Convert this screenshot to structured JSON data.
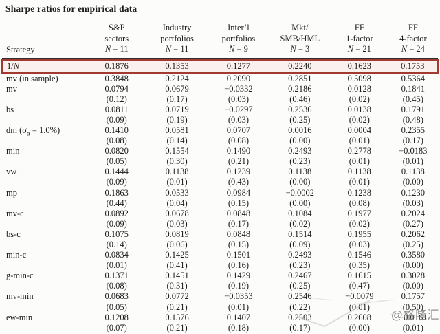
{
  "title": "Sharpe ratios for empirical data",
  "watermark": "@格隆汇",
  "accent_color": "#a13a30",
  "highlight_fill": "#faf1ee",
  "table": {
    "strategy_header": "Strategy",
    "columns": [
      {
        "line1": "S&P",
        "line2": "sectors",
        "n": "N = 11"
      },
      {
        "line1": "Industry",
        "line2": "portfolios",
        "n": "N = 11"
      },
      {
        "line1": "Inter’l",
        "line2": "portfolios",
        "n": "N = 9"
      },
      {
        "line1": "Mkt/",
        "line2": "SMB/HML",
        "n": "N = 3"
      },
      {
        "line1": "FF",
        "line2": "1-factor",
        "n": "N = 21"
      },
      {
        "line1": "FF",
        "line2": "4-factor",
        "n": "N = 24"
      }
    ],
    "rows": [
      {
        "label_pre": "1/",
        "label_ital": "N",
        "label_post": "",
        "highlight": true,
        "values": [
          "0.1876",
          "0.1353",
          "0.1277",
          "0.2240",
          "0.1623",
          "0.1753"
        ]
      },
      {
        "label": "mv (in sample)",
        "values": [
          "0.3848",
          "0.2124",
          "0.2090",
          "0.2851",
          "0.5098",
          "0.5364"
        ]
      },
      {
        "label": "mv",
        "values": [
          "0.0794",
          "0.0679",
          "−0.0332",
          "0.2186",
          "0.0128",
          "0.1841"
        ],
        "pvalues": [
          "(0.12)",
          "(0.17)",
          "(0.03)",
          "(0.46)",
          "(0.02)",
          "(0.45)"
        ]
      },
      {
        "label": "bs",
        "values": [
          "0.0811",
          "0.0719",
          "−0.0297",
          "0.2536",
          "0.0138",
          "0.1791"
        ],
        "pvalues": [
          "(0.09)",
          "(0.19)",
          "(0.03)",
          "(0.25)",
          "(0.02)",
          "(0.48)"
        ]
      },
      {
        "label_pre": "dm (σ",
        "label_sub": "α",
        "label_post": " = 1.0%)",
        "values": [
          "0.1410",
          "0.0581",
          "0.0707",
          "0.0016",
          "0.0004",
          "0.2355"
        ],
        "pvalues": [
          "(0.08)",
          "(0.14)",
          "(0.08)",
          "(0.00)",
          "(0.01)",
          "(0.17)"
        ]
      },
      {
        "label": "min",
        "values": [
          "0.0820",
          "0.1554",
          "0.1490",
          "0.2493",
          "0.2778",
          "−0.0183"
        ],
        "pvalues": [
          "(0.05)",
          "(0.30)",
          "(0.21)",
          "(0.23)",
          "(0.01)",
          "(0.01)"
        ]
      },
      {
        "label": "vw",
        "values": [
          "0.1444",
          "0.1138",
          "0.1239",
          "0.1138",
          "0.1138",
          "0.1138"
        ],
        "pvalues": [
          "(0.09)",
          "(0.01)",
          "(0.43)",
          "(0.00)",
          "(0.01)",
          "(0.00)"
        ]
      },
      {
        "label": "mp",
        "values": [
          "0.1863",
          "0.0533",
          "0.0984",
          "−0.0002",
          "0.1238",
          "0.1230"
        ],
        "pvalues": [
          "(0.44)",
          "(0.04)",
          "(0.15)",
          "(0.00)",
          "(0.08)",
          "(0.03)"
        ]
      },
      {
        "label": "mv-c",
        "values": [
          "0.0892",
          "0.0678",
          "0.0848",
          "0.1084",
          "0.1977",
          "0.2024"
        ],
        "pvalues": [
          "(0.09)",
          "(0.03)",
          "(0.17)",
          "(0.02)",
          "(0.02)",
          "(0.27)"
        ]
      },
      {
        "label": "bs-c",
        "values": [
          "0.1075",
          "0.0819",
          "0.0848",
          "0.1514",
          "0.1955",
          "0.2062"
        ],
        "pvalues": [
          "(0.14)",
          "(0.06)",
          "(0.15)",
          "(0.09)",
          "(0.03)",
          "(0.25)"
        ]
      },
      {
        "label": "min-c",
        "values": [
          "0.0834",
          "0.1425",
          "0.1501",
          "0.2493",
          "0.1546",
          "0.3580"
        ],
        "pvalues": [
          "(0.01)",
          "(0.41)",
          "(0.16)",
          "(0.23)",
          "(0.35)",
          "(0.00)"
        ]
      },
      {
        "label": "g-min-c",
        "values": [
          "0.1371",
          "0.1451",
          "0.1429",
          "0.2467",
          "0.1615",
          "0.3028"
        ],
        "pvalues": [
          "(0.08)",
          "(0.31)",
          "(0.19)",
          "(0.25)",
          "(0.47)",
          "(0.00)"
        ]
      },
      {
        "label": "mv-min",
        "values": [
          "0.0683",
          "0.0772",
          "−0.0353",
          "0.2546",
          "−0.0079",
          "0.1757"
        ],
        "pvalues": [
          "(0.05)",
          "(0.21)",
          "(0.01)",
          "(0.22)",
          "(0.01)",
          "(0.50)"
        ]
      },
      {
        "label": "ew-min",
        "values": [
          "0.1208",
          "0.1576",
          "0.1407",
          "0.2503",
          "0.2608",
          "−0.0161"
        ],
        "pvalues": [
          "(0.07)",
          "(0.21)",
          "(0.18)",
          "(0.17)",
          "(0.00)",
          "(0.01)"
        ]
      }
    ]
  }
}
